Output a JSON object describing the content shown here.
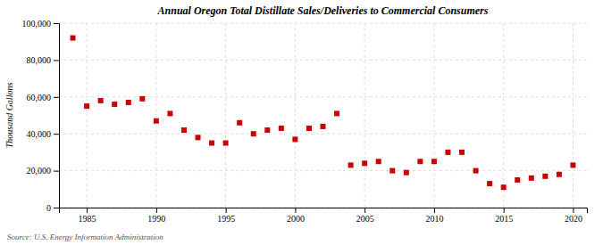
{
  "chart_data": {
    "type": "scatter",
    "title": "Annual Oregon Total Distillate Sales/Deliveries to Commercial Consumers",
    "ylabel": "Thousand Gallons",
    "source": "Source: U.S. Energy Information Administration",
    "x": [
      1984,
      1985,
      1986,
      1987,
      1988,
      1989,
      1990,
      1991,
      1992,
      1993,
      1994,
      1995,
      1996,
      1997,
      1998,
      1999,
      2000,
      2001,
      2002,
      2003,
      2004,
      2005,
      2006,
      2007,
      2008,
      2009,
      2010,
      2011,
      2012,
      2013,
      2014,
      2015,
      2016,
      2017,
      2018,
      2019,
      2020
    ],
    "values": [
      92000,
      55000,
      58000,
      56000,
      57000,
      59000,
      47000,
      51000,
      42000,
      38000,
      35000,
      35000,
      46000,
      40000,
      42000,
      43000,
      37000,
      43000,
      44000,
      51000,
      23000,
      24000,
      25000,
      20000,
      19000,
      25000,
      25000,
      30000,
      30000,
      20000,
      13000,
      11000,
      15000,
      16000,
      17000,
      18000,
      23000
    ],
    "color": "#CC0000",
    "marker": "square",
    "xlim": [
      1983,
      2021
    ],
    "ylim": [
      0,
      100000
    ],
    "xticks": [
      1985,
      1990,
      1995,
      2000,
      2005,
      2010,
      2015,
      2020
    ],
    "yticks": [
      0,
      {
        "value": 20000,
        "label": "20,000"
      },
      {
        "value": 40000,
        "label": "40,000"
      },
      {
        "value": 60000,
        "label": "60,000"
      },
      {
        "value": 80000,
        "label": "80,000"
      },
      {
        "value": 100000,
        "label": "100,000"
      }
    ],
    "grid": true
  }
}
